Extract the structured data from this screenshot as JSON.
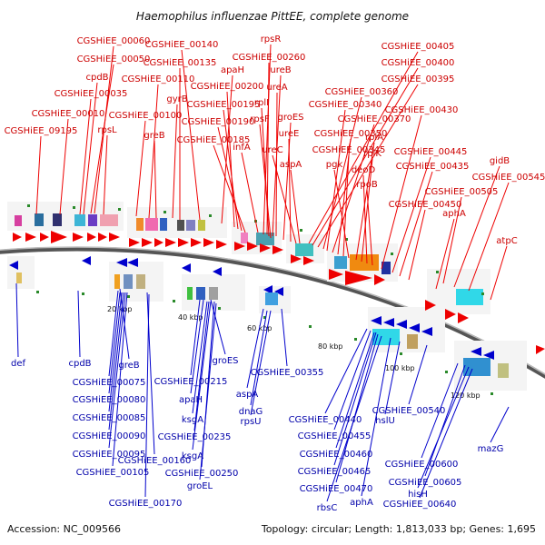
{
  "title": "Haemophilus influenzae PittEE, complete genome",
  "accession": "Accession: NC_009566",
  "summary": "Topology: circular; Length: 1,813,033 bp; Genes: 1,695",
  "colors": {
    "forward": "#cc0000",
    "reverse": "#0000aa",
    "backbone": "#888888",
    "tick": "#2a8a2a"
  },
  "ticks": [
    "20 kbp",
    "40 kbp",
    "60 kbp",
    "80 kbp",
    "100 kbp",
    "120 kbp"
  ],
  "top_labels": [
    "CGSHiEE_00060",
    "CGSHiEE_00050",
    "cpdB",
    "CGSHiEE_00035",
    "CGSHiEE_00010",
    "CGSHiEE_09195",
    "rpsL",
    "CGSHiEE_00100",
    "greB",
    "CGSHiEE_00110",
    "gyrB",
    "CGSHiEE_00135",
    "CGSHiEE_00140",
    "apaH",
    "CGSHiEE_00200",
    "CGSHiEE_00195",
    "CGSHiEE_00190",
    "CGSHiEE_00185",
    "infA",
    "rpsR",
    "CGSHiEE_00260",
    "ureB",
    "ureA",
    "rplI",
    "rpsF",
    "groES",
    "ureE",
    "ureC",
    "aspA",
    "CGSHiEE_00405",
    "CGSHiEE_00400",
    "CGSHiEE_00395",
    "CGSHiEE_00360",
    "CGSHiEE_00340",
    "CGSHiEE_00370",
    "CGSHiEE_00350",
    "CGSHiEE_00345",
    "pgk",
    "rplA",
    "rplK",
    "deoD",
    "rpoB",
    "CGSHiEE_00430",
    "CGSHiEE_00445",
    "CGSHiEE_00435",
    "CGSHiEE_00450",
    "CGSHiEE_00505",
    "gidB",
    "CGSHiEE_00545",
    "aphA",
    "atpC"
  ],
  "bottom_labels": [
    "def",
    "cpdB",
    "greB",
    "CGSHiEE_00075",
    "CGSHiEE_00080",
    "CGSHiEE_00085",
    "CGSHiEE_00090",
    "CGSHiEE_00095",
    "CGSHiEE_00105",
    "CGSHiEE_00160",
    "CGSHiEE_00170",
    "groES",
    "CGSHiEE_00215",
    "apaH",
    "ksgA",
    "CGSHiEE_00235",
    "ksgA",
    "CGSHiEE_00250",
    "groEL",
    "CGSHiEE_00355",
    "aspA",
    "dnaG",
    "rpsU",
    "CGSHiEE_00440",
    "CGSHiEE_00455",
    "CGSHiEE_00460",
    "CGSHiEE_00465",
    "CGSHiEE_00470",
    "rbsC",
    "aphA",
    "hslU",
    "CGSHiEE_00540",
    "CGSHiEE_00600",
    "CGSHiEE_00605",
    "hisH",
    "CGSHiEE_00640",
    "mazG"
  ]
}
